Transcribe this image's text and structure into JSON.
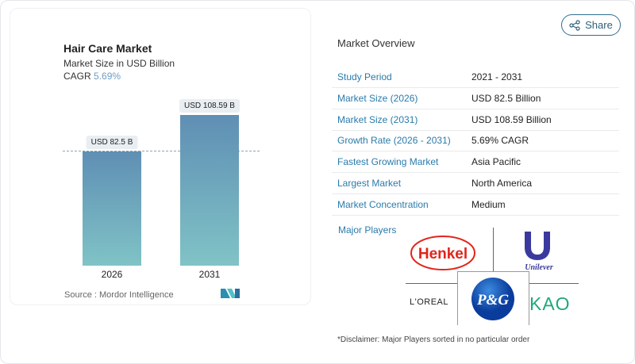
{
  "chart": {
    "title": "Hair Care Market",
    "subtitle": "Market Size in USD Billion",
    "cagr_label": "CAGR",
    "cagr_value": "5.69%",
    "source": "Source :  Mordor Intelligence",
    "logo_text": "Mordor Intelligence"
  },
  "chart_data": {
    "type": "bar",
    "categories": [
      "2026",
      "2031"
    ],
    "values": [
      82.5,
      108.59
    ],
    "data_labels": [
      "USD 82.5 B",
      "USD 108.59 B"
    ],
    "title": "Hair Care Market",
    "ylabel": "Market Size in USD Billion",
    "colors": {
      "top": "#5f8fb4",
      "bottom": "#80c3c6"
    }
  },
  "share": {
    "label": "Share",
    "icon": "share-icon"
  },
  "overview": {
    "title": "Market Overview",
    "rows": [
      {
        "k": "Study Period",
        "v": "2021 - 2031"
      },
      {
        "k": "Market Size (2026)",
        "v": "USD 82.5 Billion"
      },
      {
        "k": "Market Size (2031)",
        "v": "USD 108.59 Billion"
      },
      {
        "k": "Growth Rate (2026 - 2031)",
        "v": "5.69% CAGR"
      },
      {
        "k": "Fastest Growing Market",
        "v": "Asia Pacific"
      },
      {
        "k": "Largest Market",
        "v": "North America"
      },
      {
        "k": "Market Concentration",
        "v": "Medium"
      }
    ],
    "major_players_label": "Major Players",
    "players": [
      "Henkel",
      "Unilever",
      "L'OREAL",
      "P&G",
      "KAO"
    ],
    "disclaimer": "*Disclaimer: Major Players sorted in no particular order"
  }
}
